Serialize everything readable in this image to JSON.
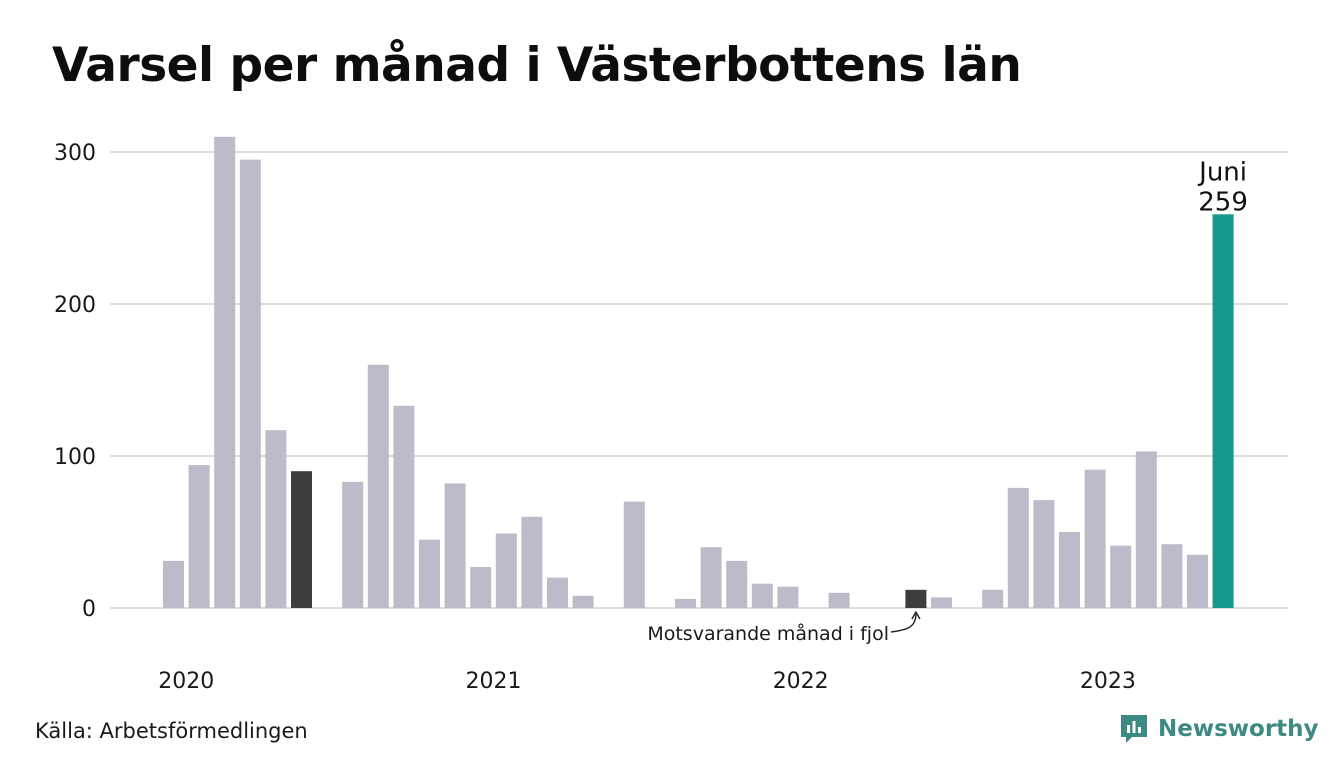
{
  "title": "Varsel per månad i Västerbottens län",
  "source": "Källa: Arbetsförmedlingen",
  "brand": {
    "name": "Newsworthy",
    "icon": "newsworthy-logo-icon"
  },
  "colors": {
    "bar": "#bdbbca",
    "comparison": "#3d3d3d",
    "highlight": "#16988a",
    "grid": "#dddddd",
    "brand": "#3c8a83"
  },
  "chart_data": {
    "type": "bar",
    "title": "Varsel per månad i Västerbottens län",
    "xlabel": "",
    "ylabel": "",
    "ylim": [
      0,
      300
    ],
    "yticks": [
      0,
      100,
      200,
      300
    ],
    "grid": true,
    "categories": [
      "2020-01",
      "2020-02",
      "2020-03",
      "2020-04",
      "2020-05",
      "2020-06",
      "2020-07",
      "2020-08",
      "2020-09",
      "2020-10",
      "2020-11",
      "2020-12",
      "2021-01",
      "2021-02",
      "2021-03",
      "2021-04",
      "2021-05",
      "2021-06",
      "2021-07",
      "2021-08",
      "2021-09",
      "2021-10",
      "2021-11",
      "2021-12",
      "2022-01",
      "2022-02",
      "2022-03",
      "2022-04",
      "2022-05",
      "2022-06",
      "2022-07",
      "2022-08",
      "2022-09",
      "2022-10",
      "2022-11",
      "2022-12",
      "2023-01",
      "2023-02",
      "2023-03",
      "2023-04",
      "2023-05",
      "2023-06"
    ],
    "values": [
      31,
      94,
      310,
      295,
      117,
      90,
      0,
      83,
      160,
      133,
      45,
      82,
      27,
      49,
      60,
      20,
      8,
      0,
      70,
      0,
      6,
      40,
      31,
      16,
      14,
      0,
      10,
      0,
      0,
      12,
      7,
      0,
      12,
      79,
      71,
      50,
      91,
      41,
      103,
      42,
      35,
      259
    ],
    "comparison_indices": [
      5,
      29
    ],
    "highlight_index": 41,
    "x_tick_labels": [
      {
        "label": "2020",
        "index": 0.5
      },
      {
        "label": "2021",
        "index": 12.5
      },
      {
        "label": "2022",
        "index": 24.5
      },
      {
        "label": "2023",
        "index": 36.5
      }
    ],
    "highlight_label": {
      "line1": "Juni",
      "line2": "259"
    },
    "annotation": {
      "text": "Motsvarande månad i fjol",
      "target_index": 29
    }
  }
}
